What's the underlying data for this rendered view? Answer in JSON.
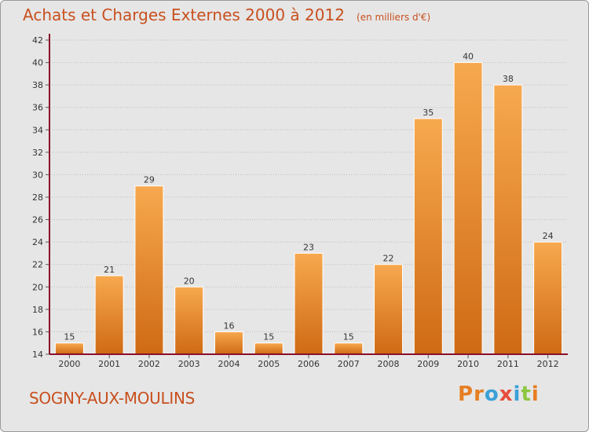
{
  "title": {
    "main": "Achats et Charges Externes 2000 à 2012",
    "unit": "(en milliers d'€)"
  },
  "commune": "SOGNY-AUX-MOULINS",
  "logo": {
    "text": "Proxiti",
    "letters": [
      {
        "ch": "P",
        "color": "#e67e22"
      },
      {
        "ch": "r",
        "color": "#e67e22"
      },
      {
        "ch": "o",
        "color": "#3aa0d8"
      },
      {
        "ch": "x",
        "color": "#e74c3c"
      },
      {
        "ch": "i",
        "color": "#3aa0d8"
      },
      {
        "ch": "t",
        "color": "#8dc63f"
      },
      {
        "ch": "i",
        "color": "#e67e22"
      }
    ]
  },
  "colors": {
    "bar_top": "#f7a94f",
    "bar_bottom": "#cf6a14",
    "background": "#e6e6e6",
    "grid": "#bbbbbb",
    "axis": "#8a0f2a"
  },
  "chart_data": {
    "type": "bar",
    "categories": [
      "2000",
      "2001",
      "2002",
      "2003",
      "2004",
      "2005",
      "2006",
      "2007",
      "2008",
      "2009",
      "2010",
      "2011",
      "2012"
    ],
    "values": [
      15,
      21,
      29,
      20,
      16,
      15,
      23,
      15,
      22,
      35,
      40,
      38,
      24
    ],
    "title": "Achats et Charges Externes 2000 à 2012",
    "xlabel": "",
    "ylabel": "",
    "ylim": [
      14,
      42
    ],
    "yticks": [
      14,
      16,
      18,
      20,
      22,
      24,
      26,
      28,
      30,
      32,
      34,
      36,
      38,
      40,
      42
    ],
    "grid": true
  }
}
